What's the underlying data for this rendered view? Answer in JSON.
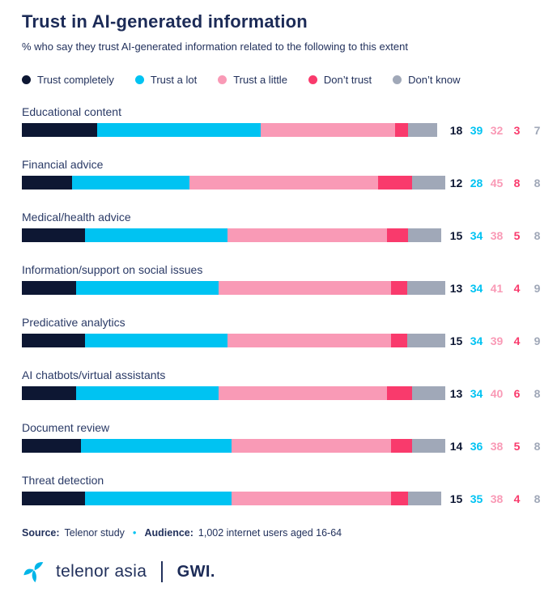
{
  "title": "Trust in AI-generated information",
  "subtitle": "% who say they trust AI-generated information related to the following to this extent",
  "legend": {
    "items": [
      {
        "label": "Trust completely",
        "color": "#0d1733"
      },
      {
        "label": "Trust a lot",
        "color": "#00c3f2"
      },
      {
        "label": "Trust a little",
        "color": "#f99ab6"
      },
      {
        "label": "Don’t trust",
        "color": "#f93a6c"
      },
      {
        "label": "Don’t know",
        "color": "#a0a8b8"
      }
    ]
  },
  "chart_data": {
    "type": "bar",
    "stacked": true,
    "orientation": "horizontal",
    "value_unit": "percent",
    "axis_range": [
      0,
      100
    ],
    "grid": false,
    "legend_position": "top",
    "categories": [
      "Educational content",
      "Financial advice",
      "Medical/health advice",
      "Information/support on social issues",
      "Predicative analytics",
      "AI chatbots/virtual assistants",
      "Document review",
      "Threat detection"
    ],
    "series": [
      {
        "name": "Trust completely",
        "color": "#0d1733",
        "values": [
          18,
          12,
          15,
          13,
          15,
          13,
          14,
          15
        ]
      },
      {
        "name": "Trust a lot",
        "color": "#00c3f2",
        "values": [
          39,
          28,
          34,
          34,
          34,
          34,
          36,
          35
        ]
      },
      {
        "name": "Trust a little",
        "color": "#f99ab6",
        "values": [
          32,
          45,
          38,
          41,
          39,
          40,
          38,
          38
        ]
      },
      {
        "name": "Don’t trust",
        "color": "#f93a6c",
        "values": [
          3,
          8,
          5,
          4,
          4,
          6,
          5,
          4
        ]
      },
      {
        "name": "Don’t know",
        "color": "#a0a8b8",
        "values": [
          7,
          8,
          8,
          9,
          9,
          8,
          8,
          8
        ]
      }
    ]
  },
  "footer": {
    "source_label": "Source:",
    "source_value": "Telenor study",
    "separator": "•",
    "audience_label": "Audience:",
    "audience_value": "1,002 internet users aged 16-64"
  },
  "logo": {
    "telenor_text": "telenor asia",
    "gwi_text": "GWI.",
    "mark_color": "#00b5e8"
  }
}
